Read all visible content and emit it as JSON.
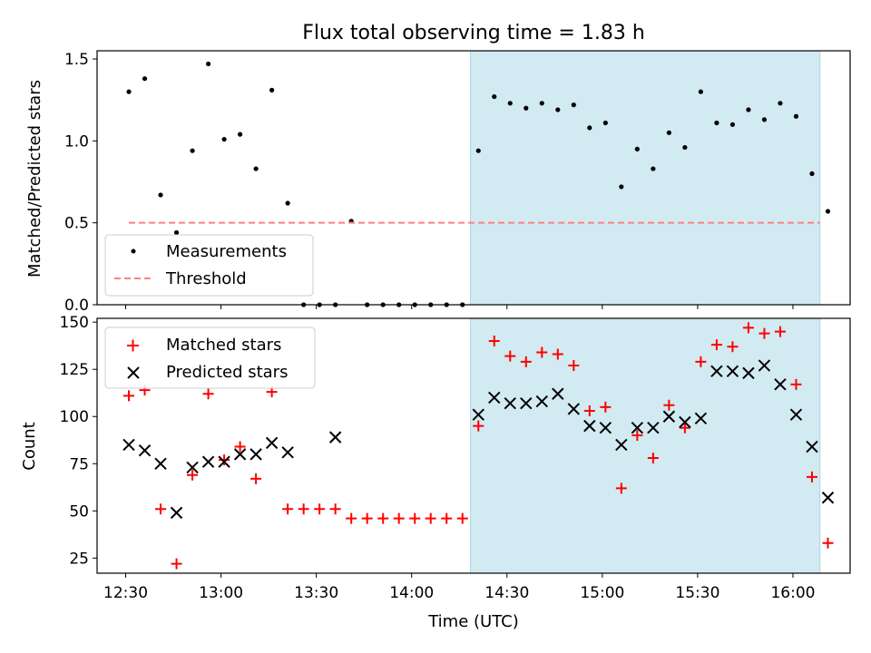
{
  "chart_data": {
    "title": "Flux total observing time = 1.83 h",
    "xlabel": "Time (UTC)",
    "x_tick_labels": [
      "12:30",
      "13:00",
      "13:30",
      "14:00",
      "14:30",
      "15:00",
      "15:30",
      "16:00"
    ],
    "x_ticks_minutes": [
      750,
      780,
      810,
      840,
      870,
      900,
      930,
      960
    ],
    "x_range_minutes": [
      741,
      978
    ],
    "shaded_interval_minutes": [
      858.5,
      968.5
    ],
    "shaded_color": "#add8e6",
    "top_panel": {
      "type": "scatter",
      "ylabel": "Matched/Predicted stars",
      "ylim": [
        0,
        1.55
      ],
      "y_ticks": [
        0.0,
        0.5,
        1.0,
        1.5
      ],
      "y_tick_labels": [
        "0.0",
        "0.5",
        "1.0",
        "1.5"
      ],
      "legend_position": "lower-left",
      "series": [
        {
          "name": "Measurements",
          "kind": "points",
          "color": "#000000",
          "x": [
            751,
            756,
            761,
            766,
            771,
            776,
            781,
            786,
            791,
            796,
            801,
            806,
            811,
            816,
            821,
            826,
            831,
            836,
            841,
            846,
            851,
            856,
            861,
            866,
            871,
            876,
            881,
            886,
            891,
            896,
            901,
            906,
            911,
            916,
            921,
            926,
            931,
            936,
            941,
            946,
            951,
            956,
            961,
            966,
            971
          ],
          "y": [
            1.3,
            1.38,
            0.67,
            0.44,
            0.94,
            1.47,
            1.01,
            1.04,
            0.83,
            1.31,
            0.62,
            0.0,
            0.0,
            0.0,
            0.51,
            0.0,
            0.0,
            0.0,
            0.0,
            0.0,
            0.0,
            0.0,
            0.94,
            1.27,
            1.23,
            1.2,
            1.23,
            1.19,
            1.22,
            1.08,
            1.11,
            0.72,
            0.95,
            0.83,
            1.05,
            0.96,
            1.3,
            1.11,
            1.1,
            1.19,
            1.13,
            1.23,
            1.15,
            0.8,
            0.57
          ]
        },
        {
          "name": "Threshold",
          "kind": "dashed-line",
          "color": "#ff8080",
          "x": [
            751,
            968.5
          ],
          "y": [
            0.5,
            0.5
          ]
        }
      ]
    },
    "bottom_panel": {
      "type": "scatter",
      "ylabel": "Count",
      "ylim": [
        17,
        152
      ],
      "y_ticks": [
        25,
        50,
        75,
        100,
        125,
        150
      ],
      "y_tick_labels": [
        "25",
        "50",
        "75",
        "100",
        "125",
        "150"
      ],
      "legend_position": "upper-left",
      "series": [
        {
          "name": "Matched stars",
          "marker": "plus",
          "color": "#ff0000",
          "x": [
            751,
            756,
            761,
            766,
            771,
            776,
            781,
            786,
            791,
            796,
            801,
            806,
            811,
            816,
            821,
            826,
            831,
            836,
            841,
            846,
            851,
            856,
            861,
            866,
            871,
            876,
            881,
            886,
            891,
            896,
            901,
            906,
            911,
            916,
            921,
            926,
            931,
            936,
            941,
            946,
            951,
            956,
            961,
            966,
            971
          ],
          "y": [
            111,
            114,
            51,
            22,
            69,
            112,
            77,
            84,
            67,
            113,
            51,
            51,
            51,
            51,
            46,
            46,
            46,
            46,
            46,
            46,
            46,
            46,
            95,
            140,
            132,
            129,
            134,
            133,
            127,
            103,
            105,
            62,
            90,
            78,
            106,
            94,
            129,
            138,
            137,
            147,
            144,
            145,
            117,
            68,
            33
          ]
        },
        {
          "name": "Predicted stars",
          "marker": "x",
          "color": "#000000",
          "x": [
            751,
            756,
            761,
            766,
            771,
            776,
            781,
            786,
            791,
            796,
            801,
            816,
            861,
            866,
            871,
            876,
            881,
            886,
            891,
            896,
            901,
            906,
            911,
            916,
            921,
            926,
            931,
            936,
            941,
            946,
            951,
            956,
            961,
            966,
            971
          ],
          "y": [
            85,
            82,
            75,
            49,
            73,
            76,
            76,
            80,
            80,
            86,
            81,
            89,
            101,
            110,
            107,
            107,
            108,
            112,
            104,
            95,
            94,
            85,
            94,
            94,
            100,
            97,
            99,
            124,
            124,
            123,
            127,
            117,
            101,
            84,
            57
          ]
        }
      ]
    }
  }
}
